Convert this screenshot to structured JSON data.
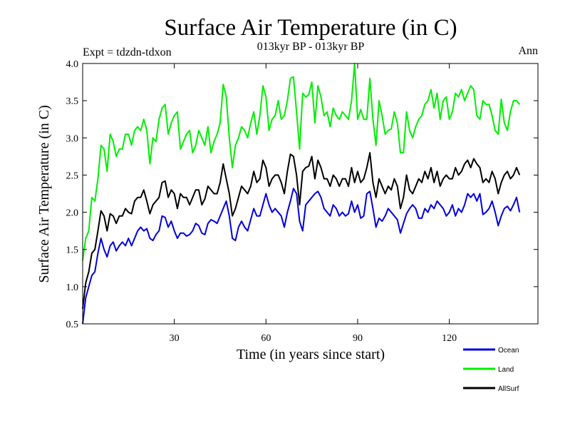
{
  "chart_data": {
    "type": "line",
    "title": "Surface Air Temperature (in C)",
    "subtitle": "013kyr BP - 013kyr BP",
    "annotation_left": "Expt = tdzdn-tdxon",
    "annotation_right": "Ann",
    "xlabel": "Time (in years since start)",
    "ylabel": "Surface Air Temperature (in C)",
    "xlim": [
      0,
      149
    ],
    "ylim": [
      0.5,
      4.0
    ],
    "xticks": [
      30,
      60,
      90,
      120
    ],
    "xtick_labels": [
      "30",
      "60",
      "90",
      "120"
    ],
    "yticks": [
      0.5,
      1.0,
      1.5,
      2.0,
      2.5,
      3.0,
      3.5,
      4.0
    ],
    "ytick_labels": [
      "0.5",
      "1.0",
      "1.5",
      "2.0",
      "2.5",
      "3.0",
      "3.5",
      "4.0"
    ],
    "legend_position": "bottom-right",
    "series": [
      {
        "name": "Ocean",
        "color": "#0000dd",
        "values": [
          0.5,
          0.85,
          1.0,
          1.15,
          1.2,
          1.45,
          1.65,
          1.5,
          1.4,
          1.55,
          1.6,
          1.48,
          1.55,
          1.6,
          1.55,
          1.65,
          1.55,
          1.65,
          1.75,
          1.8,
          1.75,
          1.78,
          1.65,
          1.62,
          1.7,
          1.75,
          1.95,
          1.93,
          1.8,
          1.88,
          1.75,
          1.65,
          1.72,
          1.72,
          1.68,
          1.7,
          1.75,
          1.85,
          1.82,
          1.72,
          1.7,
          1.85,
          1.9,
          1.88,
          1.85,
          1.95,
          2.05,
          2.15,
          1.95,
          1.65,
          1.62,
          1.8,
          1.88,
          1.8,
          1.75,
          1.9,
          2.05,
          1.95,
          1.95,
          2.1,
          2.25,
          2.1,
          2.0,
          2.05,
          2.0,
          1.95,
          1.8,
          2.0,
          2.15,
          2.32,
          2.25,
          1.88,
          1.75,
          2.1,
          2.15,
          2.2,
          2.25,
          2.28,
          2.2,
          2.05,
          2.0,
          1.95,
          2.1,
          2.05,
          1.95,
          2.0,
          1.95,
          1.98,
          2.15,
          2.0,
          2.1,
          1.92,
          1.95,
          2.25,
          2.28,
          2.05,
          1.8,
          1.92,
          1.88,
          1.95,
          2.05,
          2.0,
          1.95,
          1.9,
          1.72,
          1.85,
          1.98,
          2.05,
          2.1,
          2.05,
          1.92,
          1.92,
          2.05,
          2.0,
          2.1,
          2.05,
          2.15,
          2.1,
          2.05,
          1.95,
          2.0,
          2.1,
          1.95,
          2.05,
          2.0,
          2.1,
          2.25,
          2.2,
          2.25,
          2.15,
          2.25,
          1.97,
          2.0,
          2.05,
          2.15,
          2.0,
          1.82,
          1.95,
          2.05,
          2.08,
          2.02,
          2.1,
          2.2,
          2.0
        ]
      },
      {
        "name": "Land",
        "color": "#00ee00",
        "values": [
          1.35,
          1.65,
          1.75,
          2.2,
          2.15,
          2.45,
          2.9,
          2.85,
          2.55,
          3.05,
          2.95,
          2.75,
          2.85,
          2.85,
          3.05,
          3.05,
          2.9,
          3.1,
          3.15,
          3.1,
          3.25,
          3.1,
          2.65,
          3.0,
          2.95,
          3.25,
          3.4,
          3.45,
          3.05,
          3.2,
          3.3,
          3.35,
          2.85,
          2.95,
          3.05,
          3.1,
          2.8,
          2.9,
          3.1,
          3.0,
          2.9,
          3.15,
          2.8,
          2.95,
          3.05,
          3.2,
          3.72,
          3.55,
          3.0,
          2.6,
          2.9,
          3.0,
          3.15,
          3.1,
          3.0,
          3.2,
          3.35,
          3.05,
          3.3,
          3.7,
          3.55,
          3.1,
          3.25,
          3.3,
          3.5,
          3.25,
          3.3,
          3.5,
          3.8,
          3.82,
          3.35,
          2.85,
          3.6,
          3.55,
          3.58,
          3.75,
          3.2,
          3.7,
          3.55,
          3.3,
          3.35,
          3.15,
          3.4,
          3.3,
          3.25,
          3.35,
          3.3,
          3.25,
          3.5,
          4.0,
          3.25,
          3.38,
          3.25,
          3.25,
          3.8,
          3.25,
          2.9,
          3.5,
          3.3,
          3.05,
          3.1,
          3.12,
          3.35,
          3.2,
          2.8,
          2.8,
          3.35,
          3.1,
          3.0,
          3.15,
          3.25,
          3.3,
          3.45,
          3.5,
          3.65,
          3.4,
          3.6,
          3.25,
          3.5,
          3.55,
          3.25,
          3.35,
          3.6,
          3.55,
          3.65,
          3.5,
          3.6,
          3.7,
          3.65,
          3.3,
          3.25,
          3.5,
          3.45,
          3.45,
          3.3,
          3.1,
          3.05,
          3.52,
          3.2,
          3.1,
          3.35,
          3.5,
          3.5,
          3.45
        ]
      },
      {
        "name": "AllSurf",
        "color": "#000000",
        "values": [
          0.7,
          1.05,
          1.2,
          1.45,
          1.5,
          1.75,
          2.02,
          1.95,
          1.75,
          1.98,
          1.95,
          1.85,
          1.95,
          1.95,
          2.05,
          2.0,
          1.98,
          2.15,
          2.2,
          2.2,
          2.3,
          2.15,
          1.98,
          2.1,
          2.15,
          2.2,
          2.4,
          2.42,
          2.2,
          2.3,
          2.25,
          2.05,
          2.25,
          2.2,
          2.2,
          2.1,
          2.2,
          2.3,
          2.3,
          2.1,
          2.18,
          2.35,
          2.3,
          2.25,
          2.25,
          2.4,
          2.65,
          2.45,
          2.25,
          1.95,
          2.05,
          2.2,
          2.35,
          2.3,
          2.25,
          2.35,
          2.55,
          2.4,
          2.45,
          2.7,
          2.6,
          2.35,
          2.45,
          2.5,
          2.5,
          2.4,
          2.25,
          2.55,
          2.78,
          2.75,
          2.5,
          2.1,
          2.55,
          2.6,
          2.62,
          2.75,
          2.45,
          2.7,
          2.6,
          2.45,
          2.45,
          2.35,
          2.5,
          2.45,
          2.35,
          2.45,
          2.45,
          2.35,
          2.6,
          2.4,
          2.55,
          2.4,
          2.45,
          2.6,
          2.8,
          2.4,
          2.2,
          2.45,
          2.35,
          2.25,
          2.35,
          2.3,
          2.45,
          2.35,
          2.05,
          2.2,
          2.5,
          2.3,
          2.25,
          2.35,
          2.45,
          2.4,
          2.55,
          2.45,
          2.6,
          2.4,
          2.55,
          2.35,
          2.45,
          2.5,
          2.45,
          2.45,
          2.6,
          2.5,
          2.55,
          2.65,
          2.7,
          2.6,
          2.72,
          2.65,
          2.6,
          2.4,
          2.45,
          2.4,
          2.55,
          2.45,
          2.25,
          2.4,
          2.5,
          2.55,
          2.45,
          2.5,
          2.6,
          2.5
        ]
      }
    ]
  }
}
